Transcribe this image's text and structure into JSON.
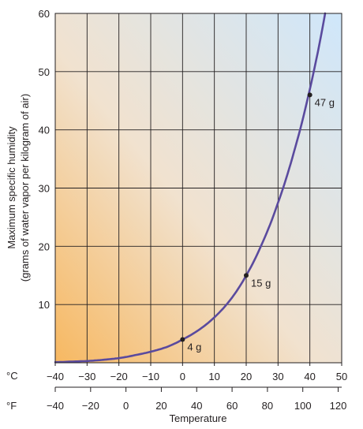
{
  "chart_data": {
    "type": "line",
    "title": "",
    "xlabel": "Temperature",
    "ylabel": "Maximum specific humidity",
    "ylabel_sub": "(grams of water vapor per kilogram of air)",
    "x_unit_primary": "°C",
    "x_unit_secondary": "°F",
    "xlim": [
      -40,
      50
    ],
    "ylim": [
      0,
      60
    ],
    "grid": true,
    "x_ticks": [
      "−40",
      "−30",
      "−20",
      "−10",
      "0",
      "10",
      "20",
      "30",
      "40",
      "50"
    ],
    "x_ticks_f": [
      {
        "label": "−40",
        "c": -40
      },
      {
        "label": "−20",
        "c": -28.89
      },
      {
        "label": "0",
        "c": -17.78
      },
      {
        "label": "20",
        "c": -6.67
      },
      {
        "label": "40",
        "c": 4.44
      },
      {
        "label": "60",
        "c": 15.56
      },
      {
        "label": "80",
        "c": 26.67
      },
      {
        "label": "100",
        "c": 37.78
      },
      {
        "label": "120",
        "c": 48.89
      }
    ],
    "y_ticks": [
      "10",
      "20",
      "30",
      "40",
      "50",
      "60"
    ],
    "series": [
      {
        "x": [
          -40,
          -35,
          -30,
          -25,
          -20,
          -15,
          -10,
          -5,
          0,
          5,
          10,
          15,
          20,
          25,
          30,
          35,
          40,
          45
        ],
        "values": [
          0.1,
          0.2,
          0.3,
          0.5,
          0.8,
          1.3,
          1.9,
          2.7,
          4,
          5.6,
          7.8,
          10.8,
          15,
          20.5,
          27.5,
          36.2,
          47,
          60.6
        ],
        "color": "#5a4a9e"
      }
    ],
    "annotations": [
      {
        "x": 0,
        "y": 4,
        "label": "4 g"
      },
      {
        "x": 20,
        "y": 15,
        "label": "15 g"
      },
      {
        "x": 40,
        "y": 46,
        "label": "47 g"
      }
    ]
  }
}
